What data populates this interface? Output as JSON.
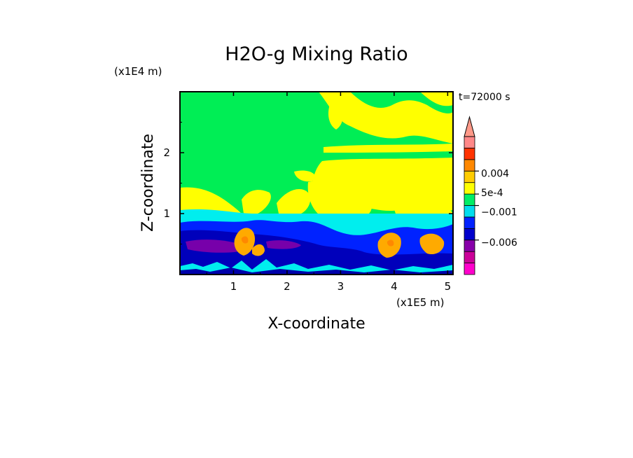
{
  "chart_data": {
    "type": "heatmap",
    "title": "H2O-g Mixing Ratio",
    "xlabel": "X-coordinate",
    "ylabel": "Z-coordinate",
    "x_multiplier": "(x1E5 m)",
    "y_multiplier": "(x1E4 m)",
    "time_label": "t=72000 s",
    "xlim": [
      0,
      5.1
    ],
    "ylim": [
      0,
      3
    ],
    "x_ticks": [
      1,
      2,
      3,
      4,
      5
    ],
    "y_ticks": [
      1,
      2
    ],
    "colorbar": {
      "colors": [
        "#ff00cc",
        "#cc0099",
        "#8800aa",
        "#0000cc",
        "#0022ff",
        "#00ddee",
        "#00ee66",
        "#ffff00",
        "#ffcc00",
        "#ff8800",
        "#ff3300",
        "#ff8888"
      ],
      "extend_color": "#ff9988",
      "tick_labels": [
        {
          "label": "0.004",
          "level": 0.004
        },
        {
          "label": "5e-4",
          "level": 0.0005
        },
        {
          "label": "−0.001",
          "level": -0.001
        },
        {
          "label": "−0.006",
          "level": -0.006
        }
      ]
    },
    "field_regions": [
      {
        "name": "moist-surface-layer",
        "z_range": [
          0,
          0.95
        ],
        "dominant_level": "blue/dark-blue with violet core near z=0.5"
      },
      {
        "name": "transition-layer",
        "z_range": [
          0.8,
          1.0
        ],
        "dominant_level": "cyan"
      },
      {
        "name": "upper-troposphere",
        "z_range": [
          1.0,
          3.0
        ],
        "dominant_level": "green with yellow filaments"
      },
      {
        "name": "convective-plumes",
        "x_centers": [
          1.1,
          1.4,
          3.9,
          4.6
        ],
        "z_range": [
          0.3,
          0.7
        ],
        "dominant_level": "orange"
      }
    ]
  }
}
